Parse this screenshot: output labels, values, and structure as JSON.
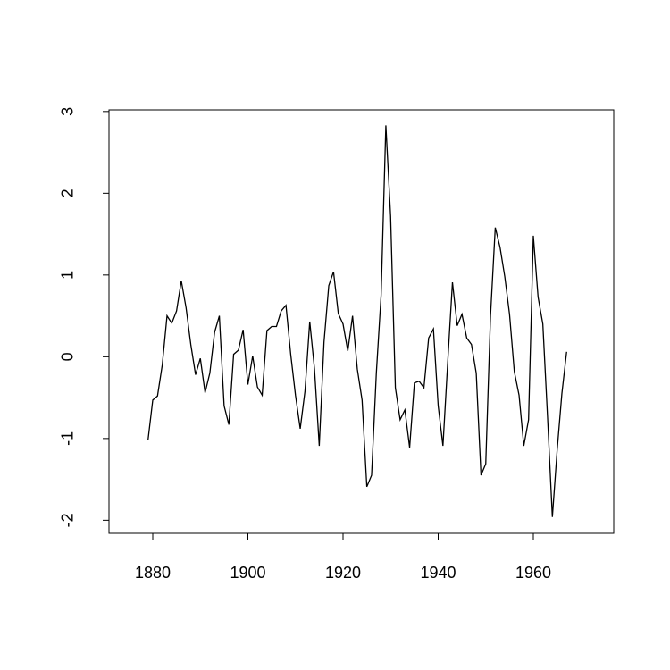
{
  "chart_data": {
    "type": "line",
    "x": [
      1879,
      1880,
      1881,
      1882,
      1883,
      1884,
      1885,
      1886,
      1887,
      1888,
      1889,
      1890,
      1891,
      1892,
      1893,
      1894,
      1895,
      1896,
      1897,
      1898,
      1899,
      1900,
      1901,
      1902,
      1903,
      1904,
      1905,
      1906,
      1907,
      1908,
      1909,
      1910,
      1911,
      1912,
      1913,
      1914,
      1915,
      1916,
      1917,
      1918,
      1919,
      1920,
      1921,
      1922,
      1923,
      1924,
      1925,
      1926,
      1927,
      1928,
      1929,
      1930,
      1931,
      1932,
      1933,
      1934,
      1935,
      1936,
      1937,
      1938,
      1939,
      1940,
      1941,
      1942,
      1943,
      1944,
      1945,
      1946,
      1947,
      1948,
      1949,
      1950,
      1951,
      1952,
      1953,
      1954,
      1955,
      1956,
      1957,
      1958,
      1959,
      1960,
      1961,
      1962,
      1963,
      1964,
      1965,
      1966,
      1967
    ],
    "values": [
      -1.02,
      -0.53,
      -0.48,
      -0.1,
      0.5,
      0.41,
      0.56,
      0.93,
      0.6,
      0.15,
      -0.22,
      -0.02,
      -0.44,
      -0.2,
      0.3,
      0.5,
      -0.6,
      -0.83,
      0.03,
      0.08,
      0.33,
      -0.34,
      0.01,
      -0.37,
      -0.47,
      0.32,
      0.37,
      0.37,
      0.56,
      0.63,
      0.03,
      -0.47,
      -0.88,
      -0.42,
      0.43,
      -0.15,
      -1.09,
      0.18,
      0.87,
      1.04,
      0.53,
      0.4,
      0.07,
      0.5,
      -0.15,
      -0.53,
      -1.59,
      -1.45,
      -0.2,
      0.75,
      2.83,
      1.72,
      -0.38,
      -0.77,
      -0.65,
      -1.11,
      -0.32,
      -0.3,
      -0.38,
      0.23,
      0.34,
      -0.6,
      -1.09,
      -0.07,
      0.91,
      0.38,
      0.52,
      0.23,
      0.15,
      -0.2,
      -1.45,
      -1.31,
      0.5,
      1.58,
      1.34,
      0.98,
      0.52,
      -0.18,
      -0.47,
      -1.09,
      -0.77,
      1.48,
      0.73,
      0.4,
      -0.75,
      -1.96,
      -1.15,
      -0.45,
      0.06
    ],
    "color": "#000000",
    "xlim": [
      1870.8,
      1976.9
    ],
    "xticks": [
      1880,
      1900,
      1920,
      1940,
      1960
    ],
    "ylim": [
      -2.16,
      3.02
    ],
    "yticks": [
      -2,
      -1,
      0,
      1,
      2,
      3
    ]
  }
}
